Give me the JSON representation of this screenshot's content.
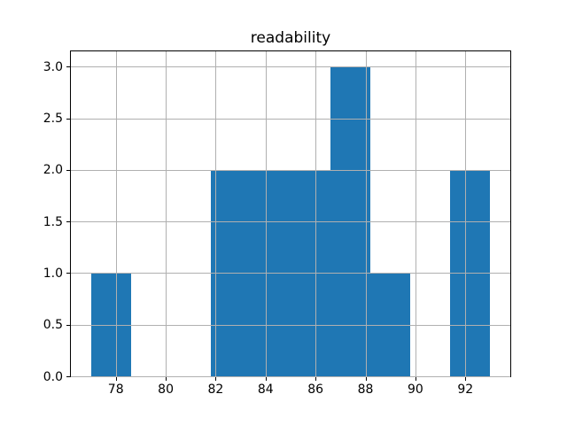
{
  "title": "readability",
  "chart_data": {
    "type": "bar",
    "subtype": "histogram",
    "title": "readability",
    "xlabel": "",
    "ylabel": "",
    "bin_edges": [
      77.0,
      78.6,
      80.2,
      81.8,
      83.4,
      85.0,
      86.6,
      88.2,
      89.8,
      91.4,
      93.0
    ],
    "counts": [
      1,
      0,
      0,
      2,
      2,
      2,
      3,
      1,
      0,
      2
    ],
    "xticks": [
      78,
      80,
      82,
      84,
      86,
      88,
      90,
      92
    ],
    "yticks": [
      0.0,
      0.5,
      1.0,
      1.5,
      2.0,
      2.5,
      3.0
    ],
    "xtick_labels": [
      "78",
      "80",
      "82",
      "84",
      "86",
      "88",
      "90",
      "92"
    ],
    "ytick_labels": [
      "0.0",
      "0.5",
      "1.0",
      "1.5",
      "2.0",
      "2.5",
      "3.0"
    ],
    "xlim": [
      76.2,
      93.8
    ],
    "ylim": [
      0.0,
      3.15
    ],
    "grid": true,
    "grid_over_bars": true,
    "legend": null,
    "bar_color": "#1f77b4",
    "grid_color": "#b0b0b0",
    "spine_color": "#000000",
    "background_color": "#ffffff"
  }
}
